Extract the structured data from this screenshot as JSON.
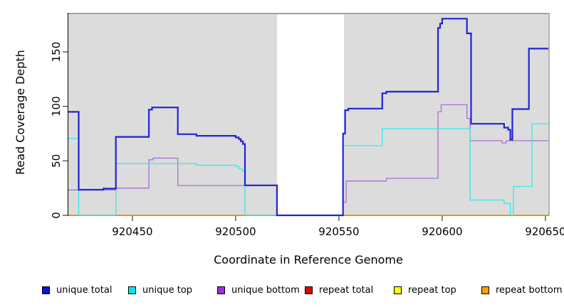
{
  "chart_data": {
    "type": "line",
    "subtype": "step-coverage",
    "title": "",
    "xlabel": "Coordinate in Reference Genome",
    "ylabel": "Read Coverage Depth",
    "x_ticks": [
      920450,
      920500,
      920550,
      920600,
      920650
    ],
    "y_ticks": [
      0,
      50,
      100,
      150
    ],
    "xlim": [
      920419,
      920651.4
    ],
    "ylim": [
      0,
      185.9
    ],
    "grid": false,
    "panel_bg": "#dcdcdc",
    "gap_bg": "#ffffff",
    "border_color": "#a3a3a3",
    "axis_color": "#000000",
    "tick_color": "#3d3d3d",
    "gap_region": {
      "from": 920520,
      "to": 920552.5
    },
    "series": [
      {
        "name": "repeat total",
        "color": "#e60000",
        "width": 1.2,
        "steps": [
          [
            920419,
            0
          ]
        ]
      },
      {
        "name": "repeat top",
        "color": "#ffff00",
        "width": 1.2,
        "steps": [
          [
            920419,
            0
          ]
        ]
      },
      {
        "name": "repeat bottom",
        "color": "#ffa200",
        "width": 1.6,
        "steps": [
          [
            920419,
            0
          ]
        ]
      },
      {
        "name": "unique bottom",
        "color": "#a96fd6",
        "width": 1.3,
        "steps": [
          [
            920419,
            23.3
          ],
          [
            920442,
            25
          ],
          [
            920458,
            51
          ],
          [
            920460,
            52.5
          ],
          [
            920472,
            27.3
          ],
          [
            920520,
            0
          ],
          [
            920552,
            12
          ],
          [
            920553.5,
            31.5
          ],
          [
            920573,
            34
          ],
          [
            920598,
            95
          ],
          [
            920599.5,
            101.5
          ],
          [
            920612,
            89
          ],
          [
            920613.5,
            68.5
          ],
          [
            920629,
            66.5
          ],
          [
            920631,
            68.5
          ]
        ]
      },
      {
        "name": "unique top",
        "color": "#40e8e8",
        "width": 1.4,
        "steps": [
          [
            920419,
            70.5
          ],
          [
            920424,
            0
          ],
          [
            920442,
            47.5
          ],
          [
            920481,
            46
          ],
          [
            920500,
            45
          ],
          [
            920501.5,
            43
          ],
          [
            920503,
            41
          ],
          [
            920504.5,
            0
          ],
          [
            920552,
            64
          ],
          [
            920571,
            79.5
          ],
          [
            920613.5,
            14
          ],
          [
            920630,
            11
          ],
          [
            920633,
            0
          ],
          [
            920634.5,
            26.5
          ],
          [
            920643.5,
            84
          ]
        ]
      },
      {
        "name": "unique total",
        "color": "#2222d9",
        "width": 2.2,
        "steps": [
          [
            920419,
            95
          ],
          [
            920424,
            23.5
          ],
          [
            920436,
            24.5
          ],
          [
            920442,
            72
          ],
          [
            920458,
            97
          ],
          [
            920459.5,
            99
          ],
          [
            920472,
            74.5
          ],
          [
            920481,
            73
          ],
          [
            920500,
            71.5
          ],
          [
            920501.5,
            70
          ],
          [
            920502.5,
            68
          ],
          [
            920503.5,
            65.5
          ],
          [
            920504.5,
            27.5
          ],
          [
            920520,
            0
          ],
          [
            920552,
            75
          ],
          [
            920553,
            96.5
          ],
          [
            920554.5,
            98
          ],
          [
            920571,
            112
          ],
          [
            920573,
            113.5
          ],
          [
            920598,
            172
          ],
          [
            920599,
            176
          ],
          [
            920600,
            180.5
          ],
          [
            920612,
            167
          ],
          [
            920614,
            84
          ],
          [
            920630,
            80.5
          ],
          [
            920632,
            78.5
          ],
          [
            920633,
            69.5
          ],
          [
            920634,
            97.5
          ],
          [
            920642,
            153
          ]
        ]
      }
    ],
    "legend_position": "bottom",
    "legend": [
      {
        "label": "unique total",
        "swatch": "#0d0de8"
      },
      {
        "label": "unique top",
        "swatch": "#00e8e8"
      },
      {
        "label": "unique bottom",
        "swatch": "#9d2fe0"
      },
      {
        "label": "repeat total",
        "swatch": "#e60000"
      },
      {
        "label": "repeat top",
        "swatch": "#ffff00"
      },
      {
        "label": "repeat bottom",
        "swatch": "#ffa200"
      }
    ]
  }
}
